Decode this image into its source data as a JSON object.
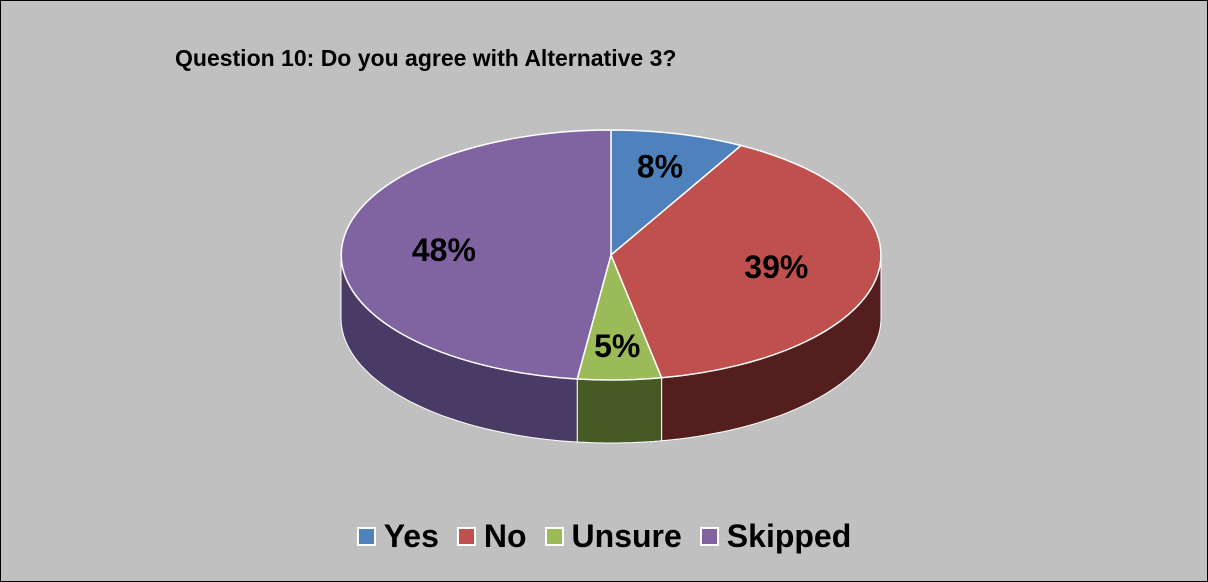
{
  "chart_data": {
    "type": "pie",
    "title": "Question 10: Do you agree with Alternative 3?",
    "categories": [
      "Yes",
      "No",
      "Unsure",
      "Skipped"
    ],
    "values": [
      8,
      39,
      5,
      48
    ],
    "data_labels": [
      "8%",
      "39%",
      "5%",
      "48%"
    ],
    "colors": [
      "#4f81bd",
      "#c0504d",
      "#9bbb59",
      "#8064a2"
    ],
    "dark_colors": [
      "#2b4a70",
      "#541d1e",
      "#455a25",
      "#4a3a66"
    ],
    "legend_position": "bottom",
    "style": "3d"
  }
}
